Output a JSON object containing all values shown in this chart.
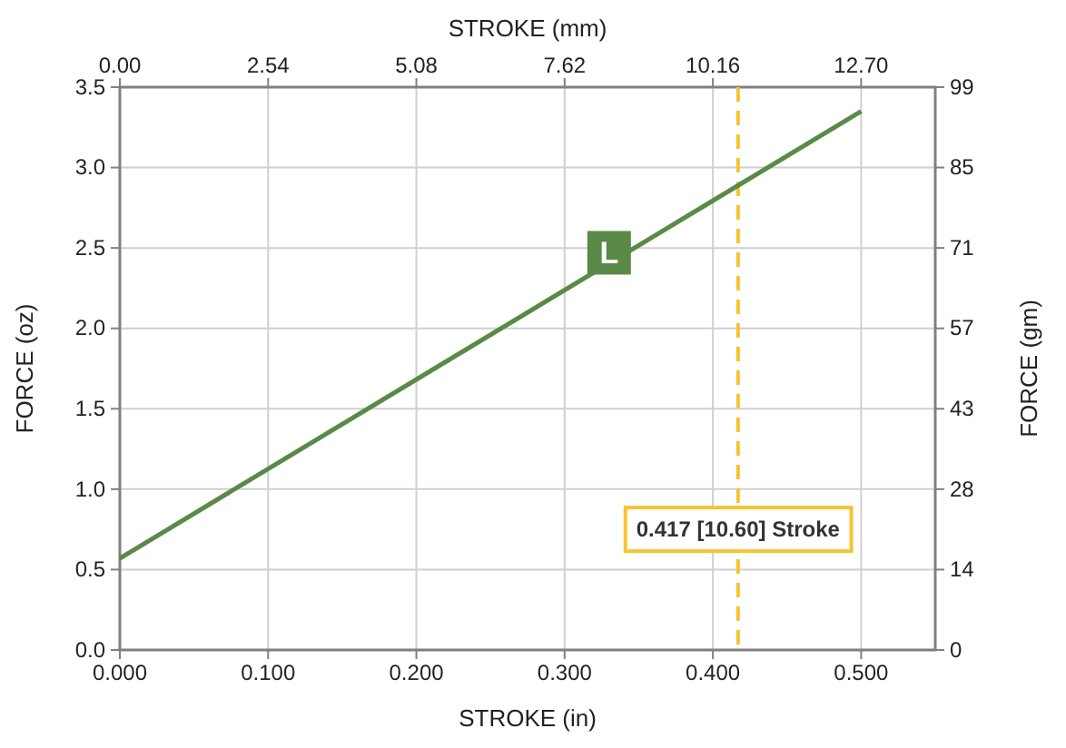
{
  "chart_data": {
    "type": "line",
    "xlabel": "STROKE (in)",
    "ylabel": "FORCE (oz)",
    "y2label": "FORCE (gm)",
    "x2label": "STROKE (mm)",
    "xlim": [
      0,
      0.55
    ],
    "xticks": [
      {
        "value": 0,
        "label": "0.000"
      },
      {
        "value": 0.1,
        "label": "0.100"
      },
      {
        "value": 0.2,
        "label": "0.200"
      },
      {
        "value": 0.3,
        "label": "0.300"
      },
      {
        "value": 0.4,
        "label": "0.400"
      },
      {
        "value": 0.5,
        "label": "0.500"
      }
    ],
    "x2lim": [
      0,
      13.97
    ],
    "x2ticks": [
      {
        "value": 0,
        "label": "0.00"
      },
      2.54,
      5.08,
      7.62,
      10.16,
      {
        "value": 12.7,
        "label": "12.70"
      }
    ],
    "ylim": [
      0,
      3.5
    ],
    "yticks": [
      {
        "value": 0,
        "label": "0.0"
      },
      0.5,
      {
        "value": 1,
        "label": "1.0"
      },
      1.5,
      {
        "value": 2,
        "label": "2.0"
      },
      2.5,
      {
        "value": 3,
        "label": "3.0"
      },
      3.5
    ],
    "y2lim": [
      0,
      99.22
    ],
    "y2ticks": [
      0,
      {
        "value": 14.17,
        "label": "14"
      },
      {
        "value": 28.35,
        "label": "28"
      },
      {
        "value": 42.52,
        "label": "43"
      },
      {
        "value": 56.7,
        "label": "57"
      },
      {
        "value": 70.87,
        "label": "71"
      },
      {
        "value": 85.05,
        "label": "85"
      },
      {
        "value": 99.22,
        "label": "99"
      }
    ],
    "grid": true,
    "series": [
      {
        "color": "#5a8a47",
        "x": [
          0,
          0.5
        ],
        "values": [
          0.57,
          3.35
        ]
      }
    ],
    "ref_lines": [
      {
        "axis": "x",
        "value": 0.417,
        "label": "0.417 [10.60] Stroke",
        "color": "#f6c431",
        "line_style": "dashed"
      }
    ],
    "annotations": [
      {
        "text": "L",
        "x": 0.33,
        "y": 2.47
      }
    ]
  }
}
